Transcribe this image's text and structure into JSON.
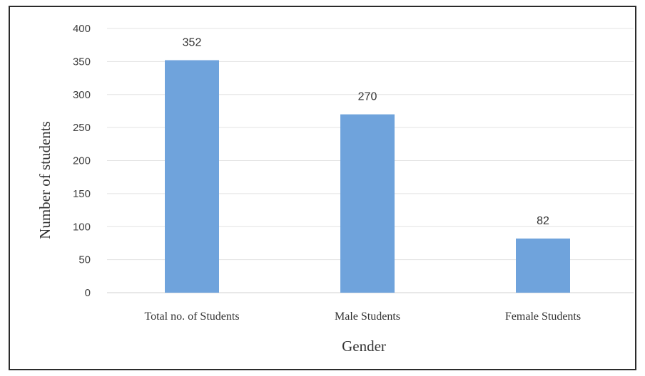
{
  "chart_data": {
    "type": "bar",
    "categories": [
      "Total no. of Students",
      "Male Students",
      "Female Students"
    ],
    "values": [
      352,
      270,
      82
    ],
    "data_labels": [
      "352",
      "270",
      "82"
    ],
    "title": "",
    "xlabel": "Gender",
    "ylabel": "Number of students",
    "ylim": [
      0,
      400
    ],
    "yticks": [
      0,
      50,
      100,
      150,
      200,
      250,
      300,
      350,
      400
    ],
    "ytick_labels": [
      "0",
      "50",
      "100",
      "150",
      "200",
      "250",
      "300",
      "350",
      "400"
    ],
    "grid": true,
    "legend": "none",
    "bar_color": "#6fa3dc",
    "grid_color": "#e3e3e3",
    "axis_color": "#d0d0d0"
  }
}
